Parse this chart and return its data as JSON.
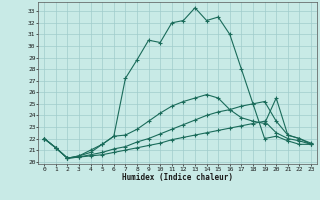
{
  "xlabel": "Humidex (Indice chaleur)",
  "bg_color": "#c8eae6",
  "grid_color": "#a0cccc",
  "line_color": "#1a6b5a",
  "xlim": [
    -0.5,
    23.5
  ],
  "ylim": [
    19.8,
    33.8
  ],
  "xticks": [
    0,
    1,
    2,
    3,
    4,
    5,
    6,
    7,
    8,
    9,
    10,
    11,
    12,
    13,
    14,
    15,
    16,
    17,
    18,
    19,
    20,
    21,
    22,
    23
  ],
  "yticks": [
    20,
    21,
    22,
    23,
    24,
    25,
    26,
    27,
    28,
    29,
    30,
    31,
    32,
    33
  ],
  "lines": [
    {
      "x": [
        0,
        1,
        2,
        3,
        4,
        5,
        6,
        7,
        8,
        9,
        10,
        11,
        12,
        13,
        14,
        15,
        16,
        17,
        18,
        19,
        20,
        21,
        22,
        23
      ],
      "y": [
        22,
        21.2,
        20.3,
        20.5,
        20.8,
        21.5,
        22.2,
        27.2,
        28.8,
        30.5,
        30.3,
        32,
        32.2,
        33.3,
        32.2,
        32.5,
        31,
        28,
        25.0,
        22,
        22.2,
        21.8,
        21.5,
        21.5
      ]
    },
    {
      "x": [
        0,
        1,
        2,
        3,
        4,
        5,
        6,
        7,
        8,
        9,
        10,
        11,
        12,
        13,
        14,
        15,
        16,
        17,
        18,
        19,
        20,
        21,
        22,
        23
      ],
      "y": [
        22,
        21.2,
        20.3,
        20.5,
        21.0,
        21.5,
        22.2,
        22.3,
        22.8,
        23.5,
        24.2,
        24.8,
        25.2,
        25.5,
        25.8,
        25.5,
        24.5,
        23.8,
        23.5,
        23.3,
        25.5,
        22.3,
        22.0,
        21.5
      ]
    },
    {
      "x": [
        0,
        1,
        2,
        3,
        4,
        5,
        6,
        7,
        8,
        9,
        10,
        11,
        12,
        13,
        14,
        15,
        16,
        17,
        18,
        19,
        20,
        21,
        22,
        23
      ],
      "y": [
        22,
        21.2,
        20.3,
        20.4,
        20.6,
        20.8,
        21.1,
        21.3,
        21.7,
        22.0,
        22.4,
        22.8,
        23.2,
        23.6,
        24.0,
        24.3,
        24.5,
        24.8,
        25.0,
        25.2,
        23.5,
        22.3,
        22.0,
        21.6
      ]
    },
    {
      "x": [
        0,
        1,
        2,
        3,
        4,
        5,
        6,
        7,
        8,
        9,
        10,
        11,
        12,
        13,
        14,
        15,
        16,
        17,
        18,
        19,
        20,
        21,
        22,
        23
      ],
      "y": [
        22,
        21.2,
        20.3,
        20.4,
        20.5,
        20.6,
        20.8,
        21.0,
        21.2,
        21.4,
        21.6,
        21.9,
        22.1,
        22.3,
        22.5,
        22.7,
        22.9,
        23.1,
        23.3,
        23.5,
        22.5,
        22.0,
        21.8,
        21.5
      ]
    }
  ]
}
